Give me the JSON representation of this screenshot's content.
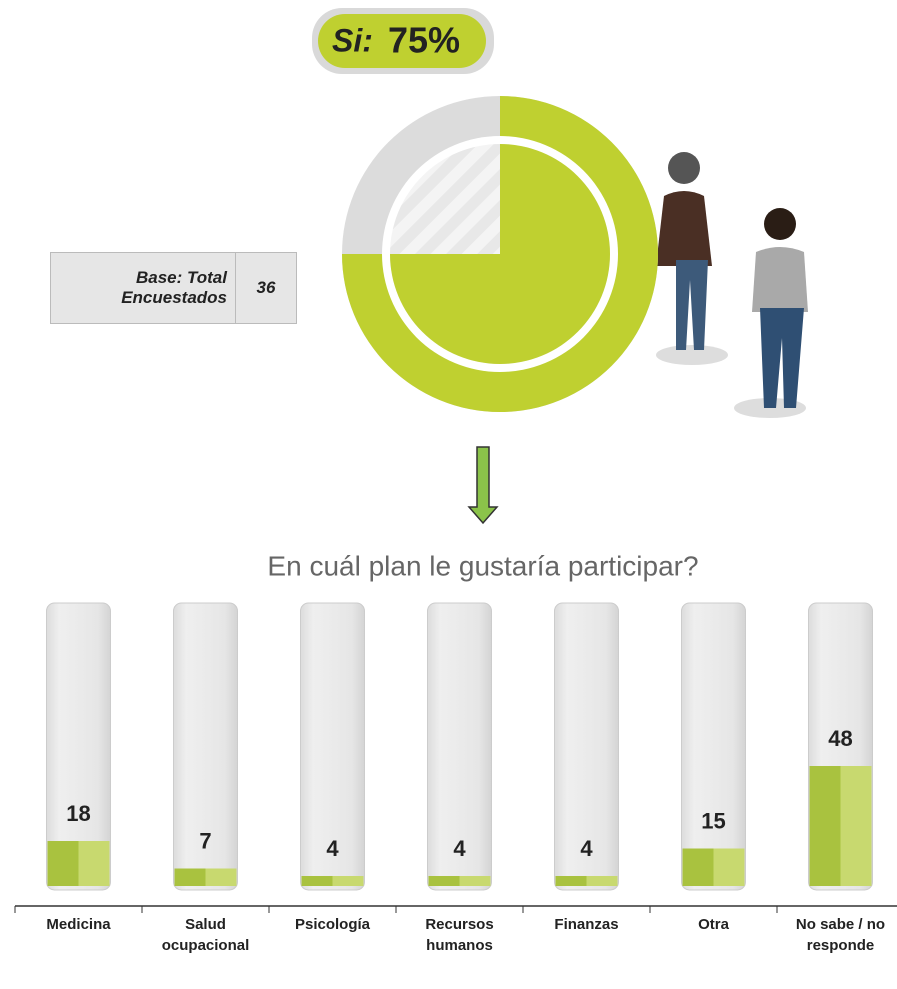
{
  "header": {
    "badge_label": "Si:",
    "value": 75,
    "value_label": "75%",
    "color": "#bfd030"
  },
  "base": {
    "label": "Base: Total Encuestados",
    "value": "36"
  },
  "chart_data": {
    "type": "bar",
    "title": "En cuál plan le gustaría participar?",
    "categories": [
      "Medicina",
      "Salud ocupacional",
      "Psicología",
      "Recursos humanos",
      "Finanzas",
      "Otra",
      "No sabe / no responde"
    ],
    "values": [
      18,
      7,
      4,
      4,
      4,
      15,
      48
    ],
    "color": "#a9c23f"
  }
}
